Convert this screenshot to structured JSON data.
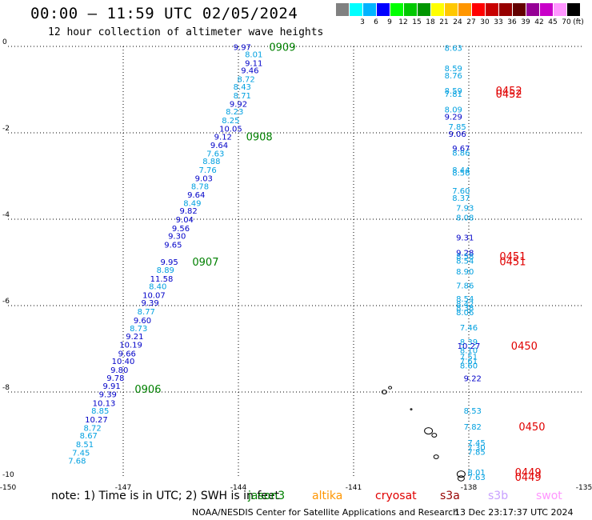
{
  "header": {
    "title": "00:00 – 11:59 UTC 02/05/2024",
    "subtitle": "12 hour collection of altimeter wave heights"
  },
  "legend": {
    "unit": "(ft)",
    "colors": [
      "#808080",
      "#00ffff",
      "#00b4ff",
      "#0000ff",
      "#00ff00",
      "#00c800",
      "#009600",
      "#ffff00",
      "#ffc800",
      "#ff9600",
      "#ff0000",
      "#c80000",
      "#960000",
      "#640000",
      "#960096",
      "#c800c8",
      "#ff96ff",
      "#000000"
    ],
    "labels": [
      "",
      "3",
      "6",
      "9",
      "12",
      "15",
      "18",
      "21",
      "24",
      "27",
      "30",
      "33",
      "36",
      "39",
      "42",
      "45",
      "70"
    ]
  },
  "axes": {
    "x": {
      "ticks": [
        -150,
        -147,
        -144,
        -141,
        -138,
        -135
      ],
      "labels": [
        "-150",
        "-147",
        "-144",
        "-141",
        "-138",
        "-135"
      ]
    },
    "y": {
      "ticks": [
        0,
        -2,
        -4,
        -6,
        -8,
        -10
      ],
      "labels": [
        "0",
        "-2",
        "-4",
        "-6",
        "-8",
        "-10"
      ]
    }
  },
  "tracks": [
    {
      "id": "A",
      "points": [
        {
          "lon": -143.9,
          "lat": -0.01,
          "v": "9.97",
          "c": "#0000c8"
        },
        {
          "lon": -143.6,
          "lat": -0.18,
          "v": "8.01",
          "c": "#00a0e0"
        },
        {
          "lon": -143.6,
          "lat": -0.38,
          "v": "9.11",
          "c": "#0000c8"
        },
        {
          "lon": -143.7,
          "lat": -0.55,
          "v": "9.46",
          "c": "#0000c8"
        },
        {
          "lon": -143.8,
          "lat": -0.75,
          "v": "8.72",
          "c": "#00a0e0"
        },
        {
          "lon": -143.9,
          "lat": -0.93,
          "v": "8.43",
          "c": "#00a0e0"
        },
        {
          "lon": -143.9,
          "lat": -1.13,
          "v": "8.71",
          "c": "#00a0e0"
        },
        {
          "lon": -144.0,
          "lat": -1.32,
          "v": "9.92",
          "c": "#0000c8"
        },
        {
          "lon": -144.1,
          "lat": -1.5,
          "v": "8.23",
          "c": "#00a0e0"
        },
        {
          "lon": -144.2,
          "lat": -1.7,
          "v": "8.25",
          "c": "#00a0e0"
        },
        {
          "lon": -144.2,
          "lat": -1.9,
          "v": "10.05",
          "c": "#0000c8"
        },
        {
          "lon": -144.4,
          "lat": -2.08,
          "v": "9.12",
          "c": "#0000c8"
        },
        {
          "lon": -144.5,
          "lat": -2.28,
          "v": "9.64",
          "c": "#0000c8"
        },
        {
          "lon": -144.6,
          "lat": -2.47,
          "v": "7.63",
          "c": "#00a0e0"
        },
        {
          "lon": -144.7,
          "lat": -2.65,
          "v": "8.88",
          "c": "#00a0e0"
        },
        {
          "lon": -144.8,
          "lat": -2.85,
          "v": "7.76",
          "c": "#00a0e0"
        },
        {
          "lon": -144.9,
          "lat": -3.05,
          "v": "9.03",
          "c": "#0000c8"
        },
        {
          "lon": -145.0,
          "lat": -3.23,
          "v": "8.78",
          "c": "#00a0e0"
        },
        {
          "lon": -145.1,
          "lat": -3.43,
          "v": "9.64",
          "c": "#0000c8"
        },
        {
          "lon": -145.2,
          "lat": -3.62,
          "v": "8.49",
          "c": "#00a0e0"
        },
        {
          "lon": -145.3,
          "lat": -3.8,
          "v": "9.82",
          "c": "#0000c8"
        },
        {
          "lon": -145.4,
          "lat": -4.0,
          "v": "9.04",
          "c": "#0000c8"
        },
        {
          "lon": -145.5,
          "lat": -4.2,
          "v": "9.56",
          "c": "#0000c8"
        },
        {
          "lon": -145.6,
          "lat": -4.38,
          "v": "9.30",
          "c": "#0000c8"
        },
        {
          "lon": -145.7,
          "lat": -4.58,
          "v": "9.65",
          "c": "#0000c8"
        },
        {
          "lon": -145.8,
          "lat": -4.98,
          "v": "9.95",
          "c": "#0000c8"
        },
        {
          "lon": -145.9,
          "lat": -5.17,
          "v": "8.89",
          "c": "#00a0e0"
        },
        {
          "lon": -146.0,
          "lat": -5.37,
          "v": "11.58",
          "c": "#0000c8"
        },
        {
          "lon": -146.1,
          "lat": -5.55,
          "v": "8.40",
          "c": "#00a0e0"
        },
        {
          "lon": -146.2,
          "lat": -5.75,
          "v": "10.07",
          "c": "#0000c8"
        },
        {
          "lon": -146.3,
          "lat": -5.93,
          "v": "9.39",
          "c": "#0000c8"
        },
        {
          "lon": -146.4,
          "lat": -6.13,
          "v": "8.77",
          "c": "#00a0e0"
        },
        {
          "lon": -146.5,
          "lat": -6.33,
          "v": "9.60",
          "c": "#0000c8"
        },
        {
          "lon": -146.6,
          "lat": -6.52,
          "v": "8.73",
          "c": "#00a0e0"
        },
        {
          "lon": -146.7,
          "lat": -6.7,
          "v": "9.21",
          "c": "#0000c8"
        },
        {
          "lon": -146.8,
          "lat": -6.9,
          "v": "10.19",
          "c": "#0000c8"
        },
        {
          "lon": -146.9,
          "lat": -7.1,
          "v": "9.66",
          "c": "#0000c8"
        },
        {
          "lon": -147.0,
          "lat": -7.28,
          "v": "10.40",
          "c": "#0000c8"
        },
        {
          "lon": -147.1,
          "lat": -7.48,
          "v": "9.80",
          "c": "#0000c8"
        },
        {
          "lon": -147.2,
          "lat": -7.67,
          "v": "9.78",
          "c": "#0000c8"
        },
        {
          "lon": -147.3,
          "lat": -7.85,
          "v": "9.91",
          "c": "#0000c8"
        },
        {
          "lon": -147.4,
          "lat": -8.05,
          "v": "9.39",
          "c": "#0000c8"
        },
        {
          "lon": -147.5,
          "lat": -8.25,
          "v": "10.13",
          "c": "#0000c8"
        },
        {
          "lon": -147.6,
          "lat": -8.43,
          "v": "8.85",
          "c": "#00a0e0"
        },
        {
          "lon": -147.7,
          "lat": -8.63,
          "v": "10.27",
          "c": "#0000c8"
        },
        {
          "lon": -147.8,
          "lat": -8.82,
          "v": "8.72",
          "c": "#00a0e0"
        },
        {
          "lon": -147.9,
          "lat": -9.0,
          "v": "8.67",
          "c": "#00a0e0"
        },
        {
          "lon": -148.0,
          "lat": -9.2,
          "v": "8.51",
          "c": "#00a0e0"
        },
        {
          "lon": -148.1,
          "lat": -9.4,
          "v": "7.45",
          "c": "#00a0e0"
        },
        {
          "lon": -148.2,
          "lat": -9.58,
          "v": "7.68",
          "c": "#00a0e0"
        }
      ]
    },
    {
      "id": "B",
      "points": [
        {
          "lon": -138.4,
          "lat": -0.03,
          "v": "8.63",
          "c": "#00a0e0"
        },
        {
          "lon": -138.4,
          "lat": -0.5,
          "v": "8.59",
          "c": "#00a0e0"
        },
        {
          "lon": -138.4,
          "lat": -0.67,
          "v": "8.76",
          "c": "#00a0e0"
        },
        {
          "lon": -138.4,
          "lat": -1.02,
          "v": "8.59",
          "c": "#00a0e0"
        },
        {
          "lon": -138.4,
          "lat": -1.09,
          "v": "7.81",
          "c": "#00a0e0"
        },
        {
          "lon": -138.4,
          "lat": -1.45,
          "v": "8.09",
          "c": "#00a0e0"
        },
        {
          "lon": -138.4,
          "lat": -1.62,
          "v": "9.29",
          "c": "#0000c8"
        },
        {
          "lon": -138.3,
          "lat": -1.85,
          "v": "7.85",
          "c": "#00a0e0"
        },
        {
          "lon": -138.3,
          "lat": -2.02,
          "v": "9.06",
          "c": "#0000c8"
        },
        {
          "lon": -138.2,
          "lat": -2.35,
          "v": "9.67",
          "c": "#0000c8"
        },
        {
          "lon": -138.2,
          "lat": -2.45,
          "v": "8.86",
          "c": "#00a0e0"
        },
        {
          "lon": -138.2,
          "lat": -2.85,
          "v": "8.44",
          "c": "#00a0e0"
        },
        {
          "lon": -138.2,
          "lat": -2.92,
          "v": "8.56",
          "c": "#00a0e0"
        },
        {
          "lon": -138.2,
          "lat": -3.33,
          "v": "7.60",
          "c": "#00a0e0"
        },
        {
          "lon": -138.2,
          "lat": -3.5,
          "v": "8.37",
          "c": "#00a0e0"
        },
        {
          "lon": -138.1,
          "lat": -3.73,
          "v": "7.93",
          "c": "#00a0e0"
        },
        {
          "lon": -138.1,
          "lat": -3.95,
          "v": "8.08",
          "c": "#00a0e0"
        },
        {
          "lon": -138.1,
          "lat": -4.42,
          "v": "9.31",
          "c": "#0000c8"
        },
        {
          "lon": -138.1,
          "lat": -4.77,
          "v": "9.28",
          "c": "#0000c8"
        },
        {
          "lon": -138.1,
          "lat": -4.85,
          "v": "8.58",
          "c": "#00a0e0"
        },
        {
          "lon": -138.1,
          "lat": -4.95,
          "v": "8.54",
          "c": "#00a0e0"
        },
        {
          "lon": -138.1,
          "lat": -5.2,
          "v": "8.90",
          "c": "#00a0e0"
        },
        {
          "lon": -138.1,
          "lat": -5.53,
          "v": "7.86",
          "c": "#00a0e0"
        },
        {
          "lon": -138.1,
          "lat": -5.83,
          "v": "8.54",
          "c": "#00a0e0"
        },
        {
          "lon": -138.1,
          "lat": -5.95,
          "v": "8.42",
          "c": "#00a0e0"
        },
        {
          "lon": -138.1,
          "lat": -6.05,
          "v": "8.38",
          "c": "#00a0e0"
        },
        {
          "lon": -138.1,
          "lat": -6.15,
          "v": "8.06",
          "c": "#00a0e0"
        },
        {
          "lon": -138.0,
          "lat": -6.5,
          "v": "7.46",
          "c": "#00a0e0"
        },
        {
          "lon": -138.0,
          "lat": -6.83,
          "v": "8.39",
          "c": "#00a0e0"
        },
        {
          "lon": -138.0,
          "lat": -6.93,
          "v": "10.27",
          "c": "#0000c8"
        },
        {
          "lon": -138.0,
          "lat": -7.03,
          "v": "8.10",
          "c": "#00a0e0"
        },
        {
          "lon": -138.0,
          "lat": -7.18,
          "v": "7.51",
          "c": "#00a0e0"
        },
        {
          "lon": -138.0,
          "lat": -7.28,
          "v": "7.61",
          "c": "#00a0e0"
        },
        {
          "lon": -138.0,
          "lat": -7.38,
          "v": "8.60",
          "c": "#00a0e0"
        },
        {
          "lon": -137.9,
          "lat": -7.68,
          "v": "9.22",
          "c": "#0000c8"
        },
        {
          "lon": -137.9,
          "lat": -8.43,
          "v": "8.53",
          "c": "#00a0e0"
        },
        {
          "lon": -137.9,
          "lat": -8.8,
          "v": "7.82",
          "c": "#00a0e0"
        },
        {
          "lon": -137.8,
          "lat": -9.17,
          "v": "7.45",
          "c": "#00a0e0"
        },
        {
          "lon": -137.8,
          "lat": -9.28,
          "v": "7.30",
          "c": "#00a0e0"
        },
        {
          "lon": -137.8,
          "lat": -9.38,
          "v": "7.85",
          "c": "#00a0e0"
        },
        {
          "lon": -137.8,
          "lat": -9.85,
          "v": "8.01",
          "c": "#00a0e0"
        },
        {
          "lon": -137.8,
          "lat": -9.96,
          "v": "7.63",
          "c": "#00a0e0"
        }
      ]
    }
  ],
  "pass_labels": [
    {
      "lon": -143.2,
      "lat": -0.01,
      "t": "0909",
      "c": "#008000"
    },
    {
      "lon": -143.8,
      "lat": -2.08,
      "t": "0908",
      "c": "#008000"
    },
    {
      "lon": -145.2,
      "lat": -4.98,
      "t": "0907",
      "c": "#008000"
    },
    {
      "lon": -146.7,
      "lat": -7.93,
      "t": "0906",
      "c": "#008000"
    },
    {
      "lon": -137.3,
      "lat": -1.02,
      "t": "0452",
      "c": "#e00000"
    },
    {
      "lon": -137.3,
      "lat": -1.09,
      "t": "0452",
      "c": "#e00000"
    },
    {
      "lon": -137.2,
      "lat": -4.85,
      "t": "0451",
      "c": "#e00000"
    },
    {
      "lon": -137.2,
      "lat": -4.97,
      "t": "0451",
      "c": "#e00000"
    },
    {
      "lon": -136.9,
      "lat": -6.93,
      "t": "0450",
      "c": "#e00000"
    },
    {
      "lon": -136.7,
      "lat": -8.8,
      "t": "0450",
      "c": "#e00000"
    },
    {
      "lon": -136.8,
      "lat": -9.85,
      "t": "0449",
      "c": "#e00000"
    },
    {
      "lon": -136.8,
      "lat": -9.96,
      "t": "0449",
      "c": "#e00000"
    }
  ],
  "footer": {
    "note": "note: 1) Time is in UTC; 2) SWH is in feet",
    "sats": [
      {
        "name": "jason3",
        "c": "#008000"
      },
      {
        "name": "altika",
        "c": "#ff9600"
      },
      {
        "name": "cryosat",
        "c": "#e00000"
      },
      {
        "name": "s3a",
        "c": "#960000"
      },
      {
        "name": "s3b",
        "c": "#c8a0ff"
      },
      {
        "name": "swot",
        "c": "#ff96ff"
      }
    ],
    "credit": "NOAA/NESDIS Center for Satellite Applications and Research",
    "stamp": "13 Dec 23:17:37 UTC 2024"
  }
}
